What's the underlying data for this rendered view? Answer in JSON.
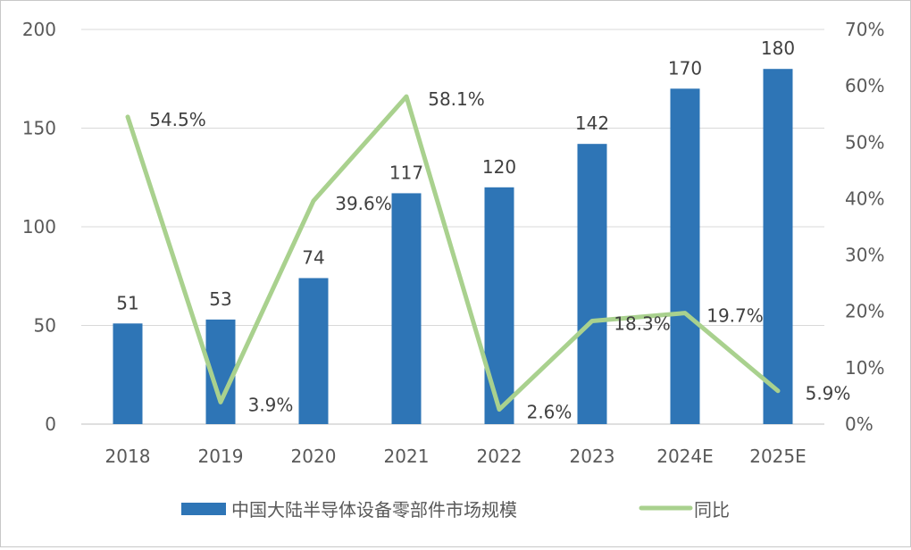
{
  "chart_data": {
    "type": "bar+line",
    "categories": [
      "2018",
      "2019",
      "2020",
      "2021",
      "2022",
      "2023",
      "2024E",
      "2025E"
    ],
    "series": [
      {
        "name": "中国大陆半导体设备零部件市场规模",
        "type": "bar",
        "axis": "left",
        "color": "#2E75B6",
        "values": [
          51,
          53,
          74,
          117,
          120,
          142,
          170,
          180
        ],
        "labels": [
          "51",
          "53",
          "74",
          "117",
          "120",
          "142",
          "170",
          "180"
        ]
      },
      {
        "name": "同比",
        "type": "line",
        "axis": "right",
        "color": "#A9D18E",
        "values": [
          54.5,
          3.9,
          39.6,
          58.1,
          2.6,
          18.3,
          19.7,
          5.9
        ],
        "labels": [
          "54.5%",
          "3.9%",
          "39.6%",
          "58.1%",
          "2.6%",
          "18.3%",
          "19.7%",
          "5.9%"
        ]
      }
    ],
    "y_left": {
      "range": [
        0,
        200
      ],
      "ticks": [
        "0",
        "50",
        "100",
        "150",
        "200"
      ]
    },
    "y_right": {
      "range": [
        0,
        70
      ],
      "ticks": [
        "0%",
        "10%",
        "20%",
        "30%",
        "40%",
        "50%",
        "60%",
        "70%"
      ]
    },
    "grid": true,
    "legend": "bottom"
  }
}
